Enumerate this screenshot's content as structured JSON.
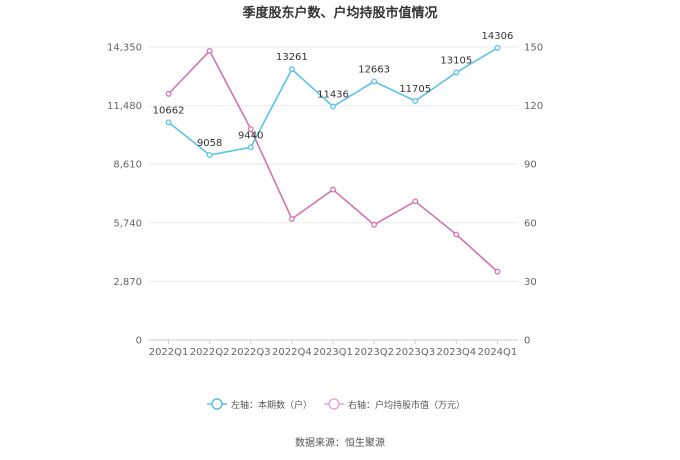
{
  "chart_data": {
    "type": "line",
    "title": "季度股东户数、户均持股市值情况",
    "categories": [
      "2022Q1",
      "2022Q2",
      "2022Q3",
      "2022Q4",
      "2023Q1",
      "2023Q2",
      "2023Q3",
      "2023Q4",
      "2024Q1"
    ],
    "y_left": {
      "ticks": [
        "0",
        "2,870",
        "5,740",
        "8,610",
        "11,480",
        "14,350"
      ],
      "ylim": [
        0,
        14350
      ]
    },
    "y_right": {
      "ticks": [
        "0",
        "30",
        "60",
        "90",
        "120",
        "150"
      ],
      "ylim": [
        0,
        150
      ]
    },
    "grid": true,
    "legend_position": "bottom",
    "series": [
      {
        "name": "左轴：本期数（户）",
        "axis": "left",
        "color": "#5bc2e7",
        "values": [
          10662,
          9058,
          9440,
          13261,
          11436,
          12663,
          11705,
          13105,
          14306
        ],
        "labels": [
          "10662",
          "9058",
          "9440",
          "13261",
          "11436",
          "12663",
          "11705",
          "13105",
          "14306"
        ]
      },
      {
        "name": "右轴：户均持股市值（万元）",
        "axis": "right",
        "color": "#d174b4",
        "values": [
          126,
          148,
          108,
          62,
          77,
          59,
          71,
          54,
          35
        ]
      }
    ],
    "source": "数据来源：恒生聚源"
  }
}
